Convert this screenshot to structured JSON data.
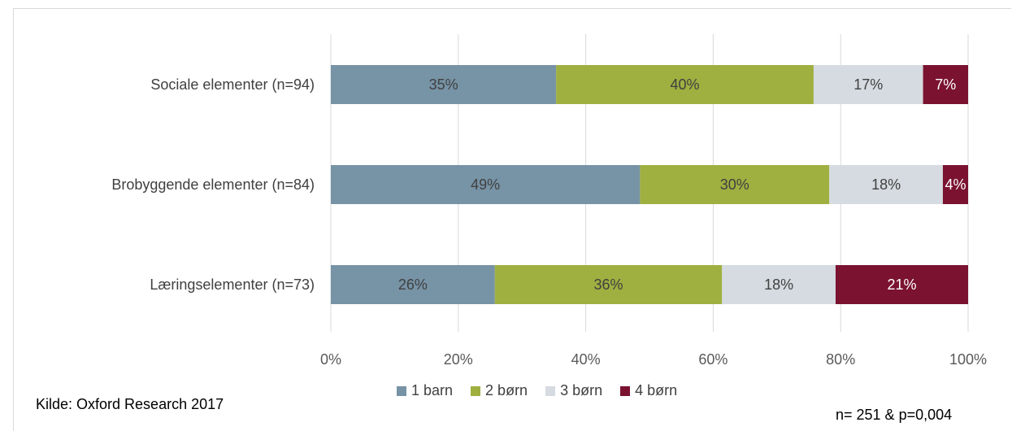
{
  "chart_data": {
    "type": "bar",
    "orientation": "horizontal",
    "stacked": true,
    "categories": [
      "Sociale elementer (n=94)",
      "Brobyggende elementer (n=84)",
      "Læringselementer (n=73)"
    ],
    "series": [
      {
        "name": "1 barn",
        "color": "#7793a6",
        "values": [
          35,
          49,
          26
        ],
        "labels": [
          "35%",
          "49%",
          "26%"
        ]
      },
      {
        "name": "2 børn",
        "color": "#9fb040",
        "values": [
          40,
          30,
          36
        ],
        "labels": [
          "40%",
          "30%",
          "36%"
        ]
      },
      {
        "name": "3 børn",
        "color": "#d5dbe0",
        "values": [
          17,
          18,
          18
        ],
        "labels": [
          "17%",
          "18%",
          "18%"
        ]
      },
      {
        "name": "4 børn",
        "color": "#7a1230",
        "values": [
          7,
          4,
          21
        ],
        "labels": [
          "7%",
          "4%",
          "21%"
        ]
      }
    ],
    "xlim": [
      0,
      100
    ],
    "xticks": [
      "0%",
      "20%",
      "40%",
      "60%",
      "80%",
      "100%"
    ],
    "grid": true,
    "legend_position": "bottom"
  },
  "footer": {
    "source": "Kilde: Oxford Research 2017",
    "note": "n= 251 & p=0,004"
  }
}
